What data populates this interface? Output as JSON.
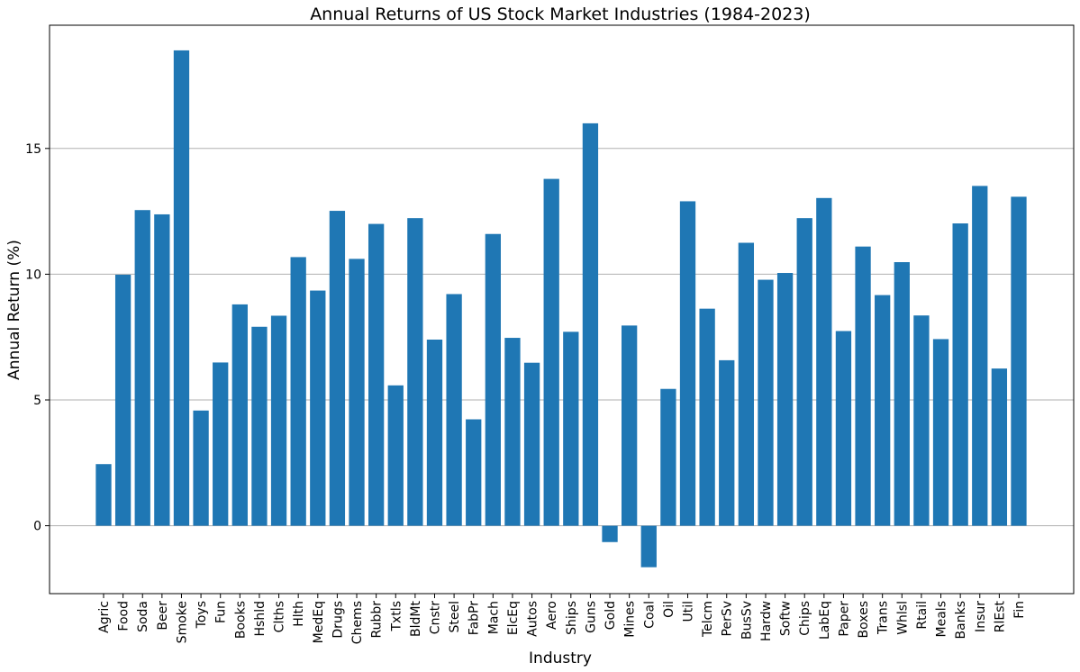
{
  "chart_data": {
    "type": "bar",
    "title": "Annual Returns of US Stock Market Industries (1984-2023)",
    "xlabel": "Industry",
    "ylabel": "Annual Return (%)",
    "ylim": [
      -2.7,
      19.9
    ],
    "yticks": [
      0,
      5,
      10,
      15
    ],
    "grid": "horizontal",
    "bar_color": "#1f77b4",
    "categories": [
      "Agric",
      "Food",
      "Soda",
      "Beer",
      "Smoke",
      "Toys",
      "Fun",
      "Books",
      "Hshld",
      "Clths",
      "Hlth",
      "MedEq",
      "Drugs",
      "Chems",
      "Rubbr",
      "Txtls",
      "BldMt",
      "Cnstr",
      "Steel",
      "FabPr",
      "Mach",
      "ElcEq",
      "Autos",
      "Aero",
      "Ships",
      "Guns",
      "Gold",
      "Mines",
      "Coal",
      "Oil",
      "Util",
      "Telcm",
      "PerSv",
      "BusSv",
      "Hardw",
      "Softw",
      "Chips",
      "LabEq",
      "Paper",
      "Boxes",
      "Trans",
      "Whlsl",
      "Rtail",
      "Meals",
      "Banks",
      "Insur",
      "RlEst",
      "Fin"
    ],
    "values": [
      2.45,
      9.98,
      12.55,
      12.38,
      18.9,
      4.58,
      6.49,
      8.8,
      7.91,
      8.35,
      10.68,
      9.35,
      12.52,
      10.61,
      12.0,
      5.58,
      12.23,
      7.4,
      9.21,
      4.23,
      11.6,
      7.47,
      6.48,
      13.79,
      7.71,
      16.0,
      -0.65,
      7.96,
      -1.65,
      5.44,
      12.9,
      8.63,
      6.58,
      11.25,
      9.78,
      10.05,
      12.23,
      13.03,
      7.74,
      11.1,
      9.17,
      10.48,
      8.36,
      7.42,
      12.02,
      13.51,
      6.25,
      13.08
    ]
  }
}
